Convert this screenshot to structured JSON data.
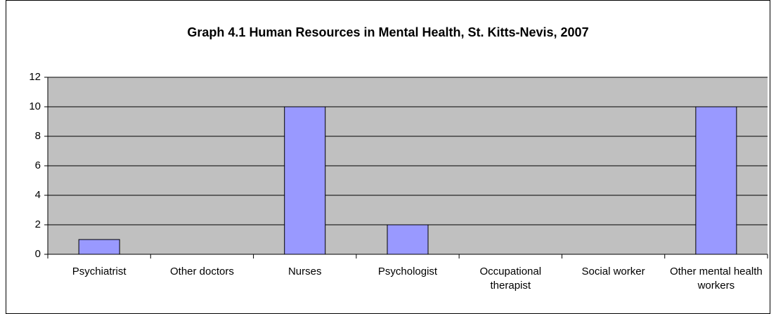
{
  "chart_data": {
    "type": "bar",
    "title": "Graph 4.1 Human Resources in Mental Health, St. Kitts-Nevis, 2007",
    "categories": [
      "Psychiatrist",
      "Other doctors",
      "Nurses",
      "Psychologist",
      "Occupational therapist",
      "Social worker",
      "Other mental health workers"
    ],
    "values": [
      1,
      0,
      10,
      2,
      0,
      0,
      10
    ],
    "color": "#9999ff",
    "ylim": [
      0,
      12
    ],
    "yticks": [
      0,
      2,
      4,
      6,
      8,
      10,
      12
    ],
    "grid": true
  }
}
